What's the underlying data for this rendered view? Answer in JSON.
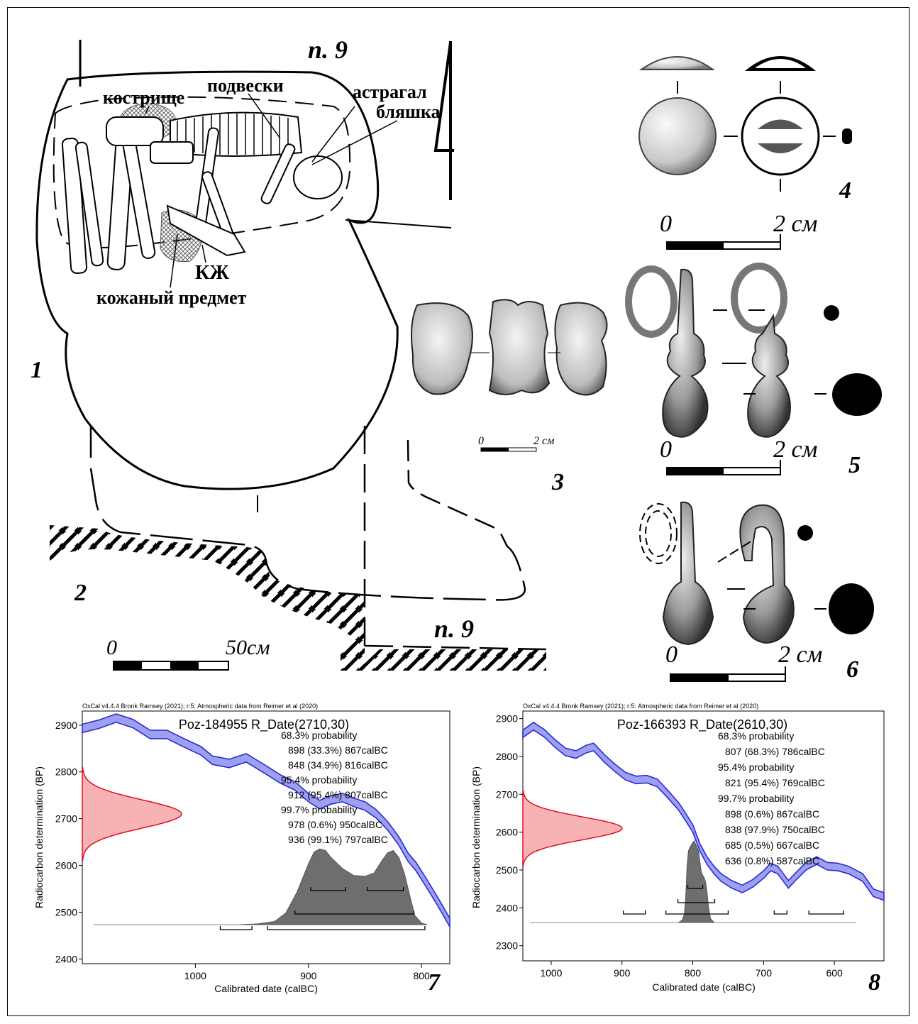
{
  "figure": {
    "panel_numbers": [
      "1",
      "2",
      "3",
      "4",
      "5",
      "6",
      "7",
      "8"
    ],
    "plan": {
      "pit_label_top": "п. 9",
      "pit_label_bottom": "п. 9",
      "labels": {
        "hearth": "кострище",
        "pendants": "подвески",
        "astragal": "астрагал",
        "plaque": "бляшка",
        "kzh": "КЖ",
        "leather": "кожаный предмет"
      }
    },
    "scales": {
      "section": {
        "zero": "0",
        "end": "50см"
      },
      "s3": {
        "zero": "0",
        "end": "2 см"
      },
      "s4": {
        "zero": "0",
        "end": "2 см"
      },
      "s5": {
        "zero": "0",
        "end": "2 см"
      },
      "s6": {
        "zero": "0",
        "end": "2 см"
      }
    }
  },
  "chart_data": [
    {
      "type": "line",
      "header": "OxCal v4.4.4 Bronk Ramsey (2021); r:5: Atmospheric data from Reimer et al (2020)",
      "title": "Poz-184955 R_Date(2710,30)",
      "xlabel": "Calibrated date (calBC)",
      "ylabel": "Radiocarbon determination (BP)",
      "xlim": [
        1100,
        775
      ],
      "ylim": [
        2390,
        2930
      ],
      "xticks": [
        "1000",
        "900",
        "800"
      ],
      "yticks": [
        "2400",
        "2500",
        "2600",
        "2700",
        "2800",
        "2900"
      ],
      "radiocarbon": {
        "mean": 2710,
        "sd": 30
      },
      "annotations": [
        "68.3% probability",
        "898 (33.3%) 867calBC",
        "848 (34.9%) 816calBC",
        "95.4% probability",
        "912 (95.4%) 807calBC",
        "99.7% probability",
        "978 (0.6%) 950calBC",
        "936 (99.1%) 797calBC"
      ],
      "ranges": {
        "r68": [
          [
            898,
            867
          ],
          [
            848,
            816
          ]
        ],
        "r95": [
          [
            912,
            807
          ]
        ],
        "r99": [
          [
            978,
            950
          ],
          [
            936,
            797
          ]
        ]
      },
      "curve": {
        "x": [
          1100,
          1085,
          1070,
          1055,
          1040,
          1025,
          1010,
          995,
          985,
          970,
          955,
          940,
          925,
          912,
          900,
          890,
          880,
          870,
          860,
          850,
          840,
          830,
          820,
          812,
          805,
          795,
          785,
          775
        ],
        "y": [
          2893,
          2902,
          2915,
          2903,
          2880,
          2880,
          2862,
          2845,
          2825,
          2818,
          2830,
          2808,
          2785,
          2770,
          2745,
          2730,
          2740,
          2745,
          2735,
          2727,
          2710,
          2685,
          2652,
          2618,
          2598,
          2560,
          2520,
          2478
        ],
        "half_width": 9
      },
      "posterior": {
        "x": [
          960,
          945,
          930,
          920,
          910,
          900,
          895,
          890,
          885,
          880,
          870,
          860,
          850,
          842,
          835,
          830,
          825,
          820,
          815,
          810,
          806,
          800,
          795
        ],
        "y": [
          0.0,
          0.01,
          0.04,
          0.15,
          0.42,
          0.78,
          0.93,
          0.97,
          0.95,
          0.86,
          0.72,
          0.63,
          0.62,
          0.66,
          0.82,
          0.92,
          0.95,
          0.86,
          0.65,
          0.35,
          0.12,
          0.02,
          0.0
        ]
      }
    },
    {
      "type": "line",
      "header": "OxCal v4.4.4 Bronk Ramsey (2021); r:5: Atmospheric data from Reimer et al (2020)",
      "title": "Poz-166393 R_Date(2610,30)",
      "xlabel": "Calibrated date (calBC)",
      "ylabel": "Radiocarbon determination (BP)",
      "xlim": [
        1040,
        530
      ],
      "ylim": [
        2260,
        2920
      ],
      "xticks": [
        "1000",
        "900",
        "800",
        "700",
        "600"
      ],
      "yticks": [
        "2300",
        "2400",
        "2500",
        "2600",
        "2700",
        "2800",
        "2900"
      ],
      "radiocarbon": {
        "mean": 2610,
        "sd": 30
      },
      "annotations": [
        "68.3% probability",
        "807 (68.3%) 786calBC",
        "95.4% probability",
        "821 (95.4%) 769calBC",
        "99.7% probability",
        "898 (0.6%) 867calBC",
        "838 (97.9%) 750calBC",
        "685 (0.5%) 667calBC",
        "636 (0.8%) 587calBC"
      ],
      "ranges": {
        "r68": [
          [
            807,
            786
          ]
        ],
        "r95": [
          [
            821,
            769
          ]
        ],
        "r99": [
          [
            898,
            867
          ],
          [
            838,
            750
          ],
          [
            685,
            667
          ],
          [
            636,
            587
          ]
        ]
      },
      "curve": {
        "x": [
          1040,
          1025,
          1010,
          995,
          980,
          965,
          950,
          940,
          925,
          910,
          895,
          880,
          865,
          850,
          835,
          820,
          810,
          800,
          790,
          780,
          770,
          760,
          745,
          730,
          715,
          700,
          690,
          680,
          672,
          665,
          655,
          640,
          625,
          610,
          595,
          580,
          560,
          545,
          530
        ],
        "y": [
          2860,
          2880,
          2862,
          2835,
          2812,
          2805,
          2820,
          2825,
          2795,
          2770,
          2748,
          2738,
          2740,
          2730,
          2700,
          2668,
          2640,
          2610,
          2560,
          2525,
          2500,
          2480,
          2462,
          2450,
          2465,
          2488,
          2508,
          2500,
          2480,
          2462,
          2482,
          2510,
          2525,
          2510,
          2508,
          2500,
          2480,
          2440,
          2430
        ],
        "half_width": 10
      },
      "posterior": {
        "x": [
          820,
          815,
          812,
          810,
          808,
          806,
          804,
          802,
          800,
          798,
          796,
          794,
          792,
          790,
          788,
          786,
          784,
          782,
          780,
          778,
          775,
          770
        ],
        "y": [
          0.0,
          0.03,
          0.1,
          0.3,
          0.7,
          0.88,
          0.92,
          0.95,
          0.98,
          1.0,
          0.96,
          0.92,
          0.88,
          0.75,
          0.62,
          0.58,
          0.55,
          0.5,
          0.38,
          0.2,
          0.05,
          0.0
        ]
      }
    }
  ]
}
